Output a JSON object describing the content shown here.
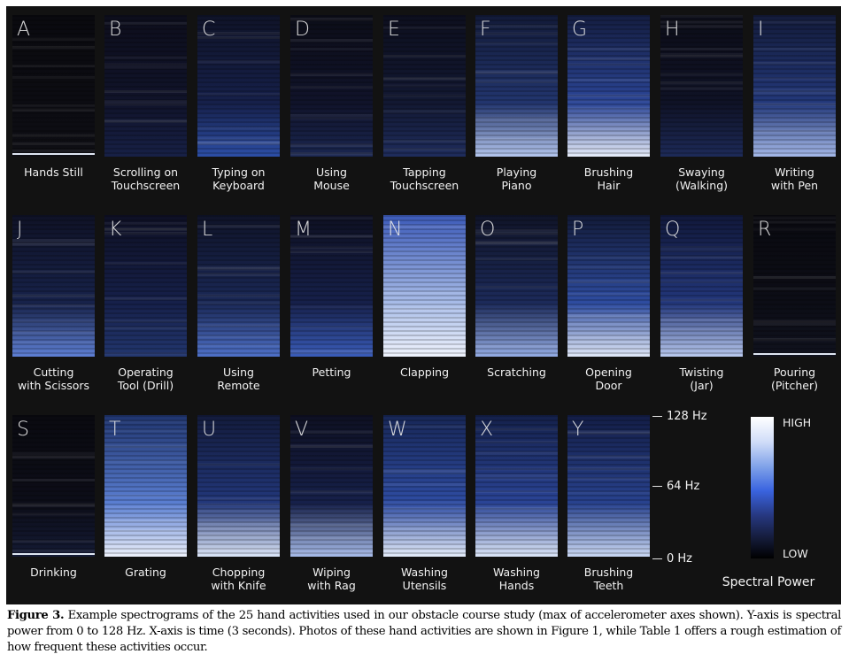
{
  "tiles": [
    {
      "letter": "A",
      "label": "Hands Still",
      "colors": [
        "#0a0a0f",
        "#0c0c12",
        "#0e0e14"
      ],
      "line": true
    },
    {
      "letter": "B",
      "label": "Scrolling on\nTouchscreen",
      "colors": [
        "#0d0e1c",
        "#10132a",
        "#172046"
      ]
    },
    {
      "letter": "C",
      "label": "Typing on\nKeyboard",
      "colors": [
        "#0f1328",
        "#16204a",
        "#2c4ea6"
      ]
    },
    {
      "letter": "D",
      "label": "Using\nMouse",
      "colors": [
        "#0c0d18",
        "#10132a",
        "#1a2650"
      ]
    },
    {
      "letter": "E",
      "label": "Tapping\nTouchscreen",
      "colors": [
        "#0d0f1e",
        "#121832",
        "#1e2c5c"
      ]
    },
    {
      "letter": "F",
      "label": "Playing\nPiano",
      "colors": [
        "#121a38",
        "#22356e",
        "#b4c6ee"
      ]
    },
    {
      "letter": "G",
      "label": "Brushing\nHair",
      "colors": [
        "#141d40",
        "#2b4596",
        "#e6ecfa"
      ]
    },
    {
      "letter": "H",
      "label": "Swaying\n(Walking)",
      "colors": [
        "#0c0d18",
        "#0f1226",
        "#1d2a58"
      ]
    },
    {
      "letter": "I",
      "label": "Writing\nwith Pen",
      "colors": [
        "#131b3a",
        "#23387a",
        "#a4b8e8"
      ]
    },
    {
      "letter": "J",
      "label": "Cutting\nwith Scissors",
      "colors": [
        "#0f1226",
        "#17224a",
        "#5e7fd4"
      ]
    },
    {
      "letter": "K",
      "label": "Operating\nTool (Drill)",
      "colors": [
        "#0e1024",
        "#16204a",
        "#22366e"
      ]
    },
    {
      "letter": "L",
      "label": "Using\nRemote",
      "colors": [
        "#0f1328",
        "#1a2856",
        "#4e70c8"
      ]
    },
    {
      "letter": "M",
      "label": "Petting",
      "colors": [
        "#0e1022",
        "#16204a",
        "#3a5cba"
      ]
    },
    {
      "letter": "N",
      "label": "Clapping",
      "colors": [
        "#3c5ab8",
        "#a8bce8",
        "#eef2fc"
      ]
    },
    {
      "letter": "O",
      "label": "Scratching",
      "colors": [
        "#101428",
        "#1c2a5a",
        "#94ace4"
      ]
    },
    {
      "letter": "P",
      "label": "Opening\nDoor",
      "colors": [
        "#121a38",
        "#2e4ca0",
        "#e0e8f8"
      ]
    },
    {
      "letter": "Q",
      "label": "Twisting\n(Jar)",
      "colors": [
        "#11183a",
        "#22367a",
        "#b8c8ee"
      ]
    },
    {
      "letter": "R",
      "label": "Pouring\n(Pitcher)",
      "colors": [
        "#0a0a10",
        "#0c0d16",
        "#10121e"
      ],
      "line": true
    },
    {
      "letter": "S",
      "label": "Drinking",
      "colors": [
        "#0a0a10",
        "#0c0d18",
        "#141a34"
      ],
      "line": true
    },
    {
      "letter": "T",
      "label": "Grating",
      "colors": [
        "#1f346e",
        "#5a7ed2",
        "#eef2fc"
      ]
    },
    {
      "letter": "U",
      "label": "Chopping\nwith Knife",
      "colors": [
        "#131b3c",
        "#22377a",
        "#dce6f8"
      ]
    },
    {
      "letter": "V",
      "label": "Wiping\nwith Rag",
      "colors": [
        "#0e1022",
        "#16204a",
        "#a8bcea"
      ]
    },
    {
      "letter": "W",
      "label": "Washing\nUtensils",
      "colors": [
        "#172656",
        "#2e4ca2",
        "#e4ecfa"
      ]
    },
    {
      "letter": "X",
      "label": "Washing\nHands",
      "colors": [
        "#14204a",
        "#2a4496",
        "#dce6f8"
      ]
    },
    {
      "letter": "Y",
      "label": "Brushing\nTeeth",
      "colors": [
        "#131d46",
        "#28428e",
        "#cad8f4"
      ]
    }
  ],
  "y_axis": {
    "ticks": [
      "128 Hz",
      "64 Hz",
      "0 Hz"
    ]
  },
  "colorbar": {
    "high": "HIGH",
    "low": "LOW",
    "title": "Spectral Power"
  },
  "caption": {
    "label": "Figure 3.",
    "text": " Example spectrograms of the 25 hand activities used in our obstacle course study (max of accelerometer axes shown). Y-axis is spectral power from 0 to 128 Hz. X-axis is time (3 seconds). Photos of these hand activities are shown in Figure 1, while Table 1 offers a rough estimation of how frequent these activities occur."
  },
  "colors": {
    "panel": "#121212",
    "accent": "#3a64e0",
    "text": "#f2f2f2"
  }
}
